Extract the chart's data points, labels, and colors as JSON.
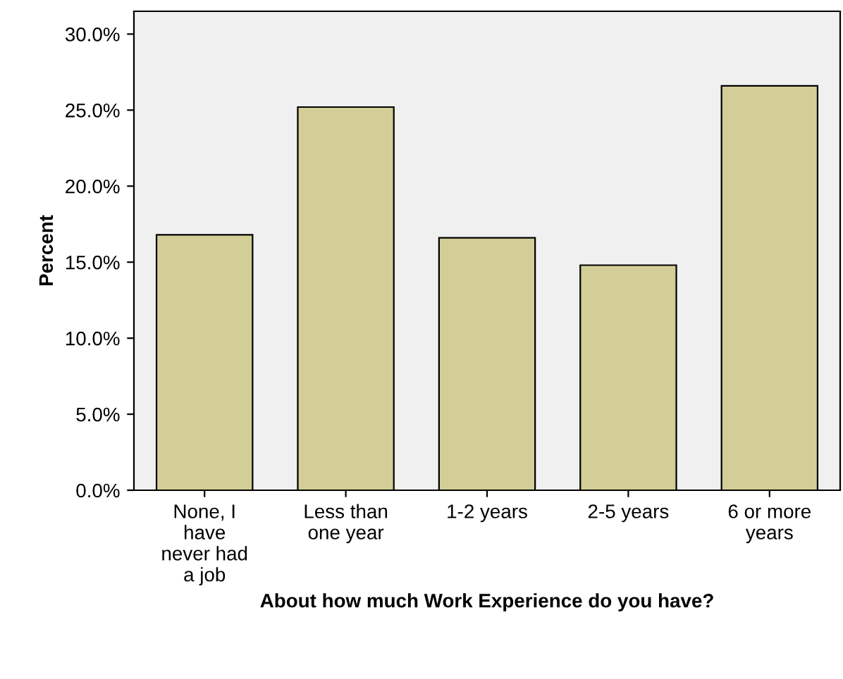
{
  "chart_data": {
    "type": "bar",
    "xlabel": "About how much Work Experience do you have?",
    "ylabel": "Percent",
    "categories": [
      "None, I\nhave\nnever had\na job",
      "Less than\none year",
      "1-2 years",
      "2-5 years",
      "6 or more\nyears"
    ],
    "values": [
      16.8,
      25.2,
      16.6,
      14.8,
      26.6
    ],
    "color": "#d3ce97",
    "ylim": [
      0,
      31.5
    ],
    "yticks": [
      {
        "value": 0,
        "label": "0.0%"
      },
      {
        "value": 5,
        "label": "5.0%"
      },
      {
        "value": 10,
        "label": "10.0%"
      },
      {
        "value": 15,
        "label": "15.0%"
      },
      {
        "value": 20,
        "label": "20.0%"
      },
      {
        "value": 25,
        "label": "25.0%"
      },
      {
        "value": 30,
        "label": "30.0%"
      }
    ],
    "grid": false,
    "legend": false
  }
}
